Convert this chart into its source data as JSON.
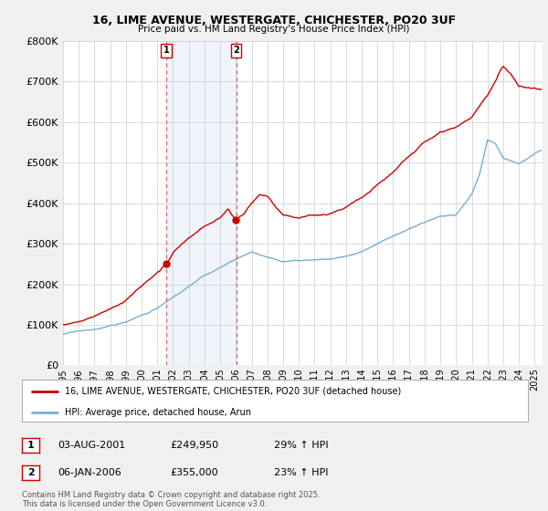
{
  "title": "16, LIME AVENUE, WESTERGATE, CHICHESTER, PO20 3UF",
  "subtitle": "Price paid vs. HM Land Registry's House Price Index (HPI)",
  "legend_line1": "16, LIME AVENUE, WESTERGATE, CHICHESTER, PO20 3UF (detached house)",
  "legend_line2": "HPI: Average price, detached house, Arun",
  "footnote": "Contains HM Land Registry data © Crown copyright and database right 2025.\nThis data is licensed under the Open Government Licence v3.0.",
  "sale1_date": "03-AUG-2001",
  "sale1_price": "£249,950",
  "sale1_hpi": "29% ↑ HPI",
  "sale2_date": "06-JAN-2006",
  "sale2_price": "£355,000",
  "sale2_hpi": "23% ↑ HPI",
  "red_color": "#cc0000",
  "blue_color": "#7aadcf",
  "shade_color": "#ddeeff",
  "background_color": "#f0f0f0",
  "plot_bg_color": "#ffffff",
  "grid_color": "#cccccc",
  "ylim": [
    0,
    800000
  ],
  "yticks": [
    0,
    100000,
    200000,
    300000,
    400000,
    500000,
    600000,
    700000,
    800000
  ],
  "sale1_x": 2001.58,
  "sale2_x": 2006.02,
  "sale1_y": 249950,
  "sale2_y": 355000,
  "xmin": 1995.0,
  "xmax": 2025.5
}
